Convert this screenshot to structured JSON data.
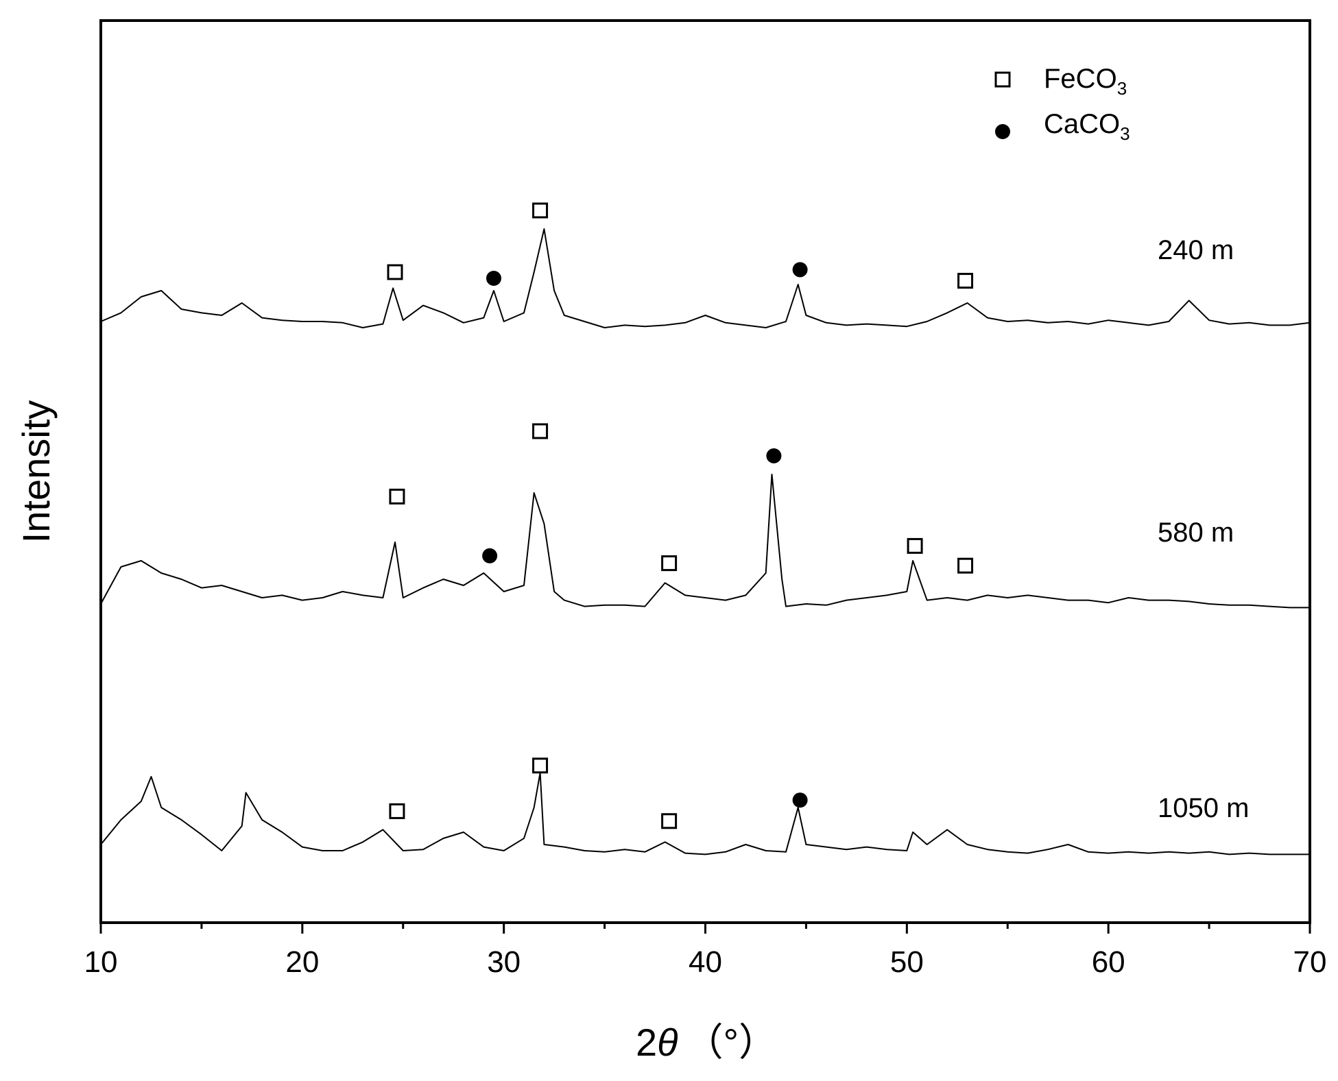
{
  "chart_data": {
    "type": "line",
    "title": "",
    "xlabel": {
      "prefix": "2",
      "symbol": "θ",
      "unit": "（°）"
    },
    "ylabel": "Intensity",
    "xlim": [
      10,
      70
    ],
    "x_ticks": [
      "10",
      "20",
      "30",
      "40",
      "50",
      "60",
      "70"
    ],
    "grid": false,
    "legend": {
      "position": "top-right",
      "items": [
        {
          "marker": "open-square",
          "label": "FeCO",
          "subscript": "3"
        },
        {
          "marker": "filled-circle",
          "label": "CaCO",
          "subscript": "3"
        }
      ]
    },
    "series": [
      {
        "name": "240 m",
        "baseline": 0,
        "points": [
          [
            10,
            0.05
          ],
          [
            11,
            0.12
          ],
          [
            12,
            0.25
          ],
          [
            13,
            0.3
          ],
          [
            14,
            0.15
          ],
          [
            15,
            0.12
          ],
          [
            16,
            0.1
          ],
          [
            17,
            0.2
          ],
          [
            18,
            0.08
          ],
          [
            19,
            0.06
          ],
          [
            20,
            0.05
          ],
          [
            21,
            0.05
          ],
          [
            22,
            0.04
          ],
          [
            23,
            0.0
          ],
          [
            24,
            0.03
          ],
          [
            24.5,
            0.32
          ],
          [
            25,
            0.06
          ],
          [
            26,
            0.18
          ],
          [
            27,
            0.12
          ],
          [
            28,
            0.04
          ],
          [
            29,
            0.08
          ],
          [
            29.5,
            0.3
          ],
          [
            30,
            0.05
          ],
          [
            31,
            0.12
          ],
          [
            31.5,
            0.45
          ],
          [
            32,
            0.8
          ],
          [
            32.5,
            0.3
          ],
          [
            33,
            0.1
          ],
          [
            34,
            0.05
          ],
          [
            35,
            0.0
          ],
          [
            36,
            0.02
          ],
          [
            37,
            0.01
          ],
          [
            38,
            0.02
          ],
          [
            39,
            0.04
          ],
          [
            40,
            0.1
          ],
          [
            41,
            0.04
          ],
          [
            42,
            0.02
          ],
          [
            43,
            0.0
          ],
          [
            44,
            0.05
          ],
          [
            44.6,
            0.35
          ],
          [
            45,
            0.1
          ],
          [
            46,
            0.04
          ],
          [
            47,
            0.02
          ],
          [
            48,
            0.03
          ],
          [
            49,
            0.02
          ],
          [
            50,
            0.01
          ],
          [
            51,
            0.05
          ],
          [
            52,
            0.12
          ],
          [
            53,
            0.2
          ],
          [
            54,
            0.08
          ],
          [
            55,
            0.05
          ],
          [
            56,
            0.06
          ],
          [
            57,
            0.04
          ],
          [
            58,
            0.05
          ],
          [
            59,
            0.03
          ],
          [
            60,
            0.06
          ],
          [
            61,
            0.04
          ],
          [
            62,
            0.02
          ],
          [
            63,
            0.05
          ],
          [
            64,
            0.22
          ],
          [
            65,
            0.06
          ],
          [
            66,
            0.03
          ],
          [
            67,
            0.04
          ],
          [
            68,
            0.02
          ],
          [
            69,
            0.02
          ],
          [
            70,
            0.04
          ]
        ],
        "markers": [
          {
            "type": "square",
            "x": 24.6,
            "y": 0.45
          },
          {
            "type": "circle",
            "x": 29.5,
            "y": 0.4
          },
          {
            "type": "square",
            "x": 31.8,
            "y": 0.95
          },
          {
            "type": "circle",
            "x": 44.7,
            "y": 0.47
          },
          {
            "type": "square",
            "x": 52.9,
            "y": 0.38
          }
        ]
      },
      {
        "name": "580 m",
        "baseline": 0,
        "points": [
          [
            10,
            0.05
          ],
          [
            11,
            0.35
          ],
          [
            12,
            0.4
          ],
          [
            13,
            0.3
          ],
          [
            14,
            0.25
          ],
          [
            15,
            0.18
          ],
          [
            16,
            0.2
          ],
          [
            17,
            0.15
          ],
          [
            18,
            0.1
          ],
          [
            19,
            0.12
          ],
          [
            20,
            0.08
          ],
          [
            21,
            0.1
          ],
          [
            22,
            0.15
          ],
          [
            23,
            0.12
          ],
          [
            24,
            0.1
          ],
          [
            24.6,
            0.55
          ],
          [
            25,
            0.1
          ],
          [
            26,
            0.18
          ],
          [
            27,
            0.25
          ],
          [
            28,
            0.2
          ],
          [
            29,
            0.3
          ],
          [
            30,
            0.15
          ],
          [
            31,
            0.2
          ],
          [
            31.5,
            0.95
          ],
          [
            32,
            0.7
          ],
          [
            32.5,
            0.15
          ],
          [
            33,
            0.08
          ],
          [
            34,
            0.03
          ],
          [
            35,
            0.04
          ],
          [
            36,
            0.04
          ],
          [
            37,
            0.03
          ],
          [
            38,
            0.22
          ],
          [
            39,
            0.12
          ],
          [
            40,
            0.1
          ],
          [
            41,
            0.08
          ],
          [
            42,
            0.12
          ],
          [
            43,
            0.3
          ],
          [
            43.3,
            1.1
          ],
          [
            43.8,
            0.25
          ],
          [
            44,
            0.03
          ],
          [
            45,
            0.05
          ],
          [
            46,
            0.04
          ],
          [
            47,
            0.08
          ],
          [
            48,
            0.1
          ],
          [
            49,
            0.12
          ],
          [
            50,
            0.15
          ],
          [
            50.3,
            0.4
          ],
          [
            51,
            0.08
          ],
          [
            52,
            0.1
          ],
          [
            53,
            0.08
          ],
          [
            54,
            0.12
          ],
          [
            55,
            0.1
          ],
          [
            56,
            0.12
          ],
          [
            57,
            0.1
          ],
          [
            58,
            0.08
          ],
          [
            59,
            0.08
          ],
          [
            60,
            0.06
          ],
          [
            61,
            0.1
          ],
          [
            62,
            0.08
          ],
          [
            63,
            0.08
          ],
          [
            64,
            0.07
          ],
          [
            65,
            0.05
          ],
          [
            66,
            0.04
          ],
          [
            67,
            0.04
          ],
          [
            68,
            0.03
          ],
          [
            69,
            0.02
          ],
          [
            70,
            0.02
          ]
        ],
        "markers": [
          {
            "type": "square",
            "x": 24.7,
            "y": 0.92
          },
          {
            "type": "circle",
            "x": 29.3,
            "y": 0.44
          },
          {
            "type": "square",
            "x": 31.8,
            "y": 1.45
          },
          {
            "type": "square",
            "x": 38.2,
            "y": 0.38
          },
          {
            "type": "circle",
            "x": 43.4,
            "y": 1.25
          },
          {
            "type": "square",
            "x": 50.4,
            "y": 0.52
          },
          {
            "type": "square",
            "x": 52.9,
            "y": 0.36
          }
        ]
      },
      {
        "name": "1050 m",
        "baseline": 0,
        "points": [
          [
            10,
            0.1
          ],
          [
            11,
            0.3
          ],
          [
            12,
            0.45
          ],
          [
            12.5,
            0.65
          ],
          [
            13,
            0.4
          ],
          [
            14,
            0.3
          ],
          [
            15,
            0.18
          ],
          [
            16,
            0.05
          ],
          [
            17,
            0.25
          ],
          [
            17.2,
            0.52
          ],
          [
            18,
            0.3
          ],
          [
            19,
            0.2
          ],
          [
            20,
            0.08
          ],
          [
            21,
            0.05
          ],
          [
            22,
            0.05
          ],
          [
            23,
            0.12
          ],
          [
            24,
            0.22
          ],
          [
            25,
            0.05
          ],
          [
            26,
            0.06
          ],
          [
            27,
            0.15
          ],
          [
            28,
            0.2
          ],
          [
            29,
            0.08
          ],
          [
            30,
            0.05
          ],
          [
            31,
            0.15
          ],
          [
            31.5,
            0.4
          ],
          [
            31.8,
            0.68
          ],
          [
            32,
            0.1
          ],
          [
            33,
            0.08
          ],
          [
            34,
            0.05
          ],
          [
            35,
            0.04
          ],
          [
            36,
            0.06
          ],
          [
            37,
            0.04
          ],
          [
            38,
            0.12
          ],
          [
            39,
            0.03
          ],
          [
            40,
            0.02
          ],
          [
            41,
            0.04
          ],
          [
            42,
            0.1
          ],
          [
            43,
            0.05
          ],
          [
            44,
            0.04
          ],
          [
            44.6,
            0.4
          ],
          [
            45,
            0.1
          ],
          [
            46,
            0.08
          ],
          [
            47,
            0.06
          ],
          [
            48,
            0.08
          ],
          [
            49,
            0.06
          ],
          [
            50,
            0.05
          ],
          [
            50.3,
            0.2
          ],
          [
            51,
            0.1
          ],
          [
            52,
            0.22
          ],
          [
            53,
            0.1
          ],
          [
            54,
            0.06
          ],
          [
            55,
            0.04
          ],
          [
            56,
            0.03
          ],
          [
            57,
            0.06
          ],
          [
            58,
            0.1
          ],
          [
            59,
            0.04
          ],
          [
            60,
            0.03
          ],
          [
            61,
            0.04
          ],
          [
            62,
            0.03
          ],
          [
            63,
            0.04
          ],
          [
            64,
            0.03
          ],
          [
            65,
            0.04
          ],
          [
            66,
            0.02
          ],
          [
            67,
            0.03
          ],
          [
            68,
            0.02
          ],
          [
            69,
            0.02
          ],
          [
            70,
            0.02
          ]
        ],
        "markers": [
          {
            "type": "square",
            "x": 24.7,
            "y": 0.37
          },
          {
            "type": "square",
            "x": 31.8,
            "y": 0.74
          },
          {
            "type": "square",
            "x": 38.2,
            "y": 0.29
          },
          {
            "type": "circle",
            "x": 44.7,
            "y": 0.46
          }
        ]
      }
    ]
  },
  "colors": {
    "line": "#000000",
    "background": "#ffffff"
  }
}
